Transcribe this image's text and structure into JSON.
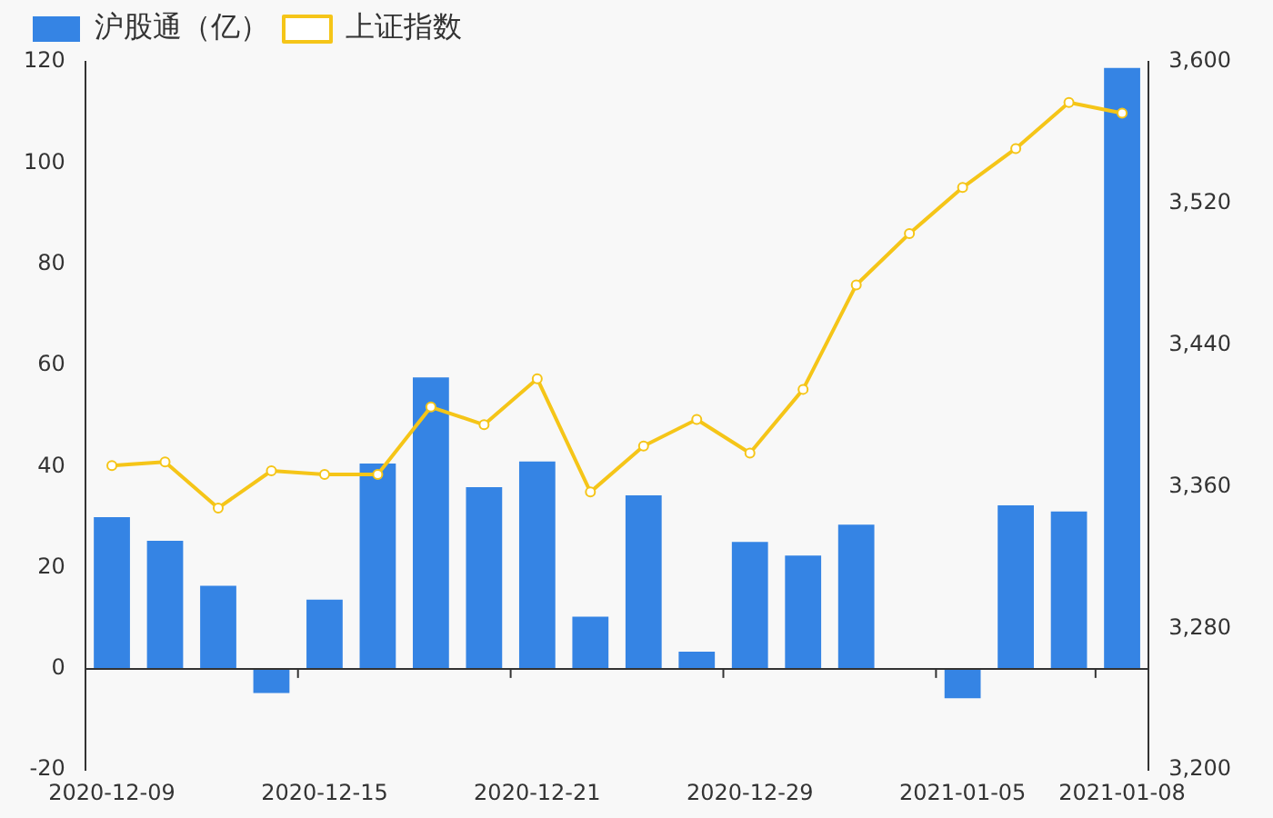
{
  "chart_data": {
    "type": "bar",
    "categories": [
      "2020-12-09",
      null,
      null,
      null,
      "2020-12-15",
      null,
      null,
      null,
      "2020-12-21",
      null,
      null,
      null,
      "2020-12-29",
      null,
      null,
      null,
      "2021-01-05",
      null,
      null,
      "2021-01-08"
    ],
    "series": [
      {
        "name": "沪股通（亿）",
        "color": "#3584e4",
        "values": [
          30,
          25.3,
          16.4,
          -4.8,
          13.7,
          40.6,
          57.6,
          35.9,
          41,
          10.3,
          34.3,
          3.4,
          25.1,
          22.4,
          28.5,
          0,
          -5.8,
          32.3,
          31.1,
          118.8
        ]
      },
      {
        "name": "上证指数",
        "type": "line",
        "axis": "y2",
        "color": "#f5c518",
        "marker": "circle",
        "values": [
          3372,
          3374,
          3348,
          3369,
          3367,
          3367,
          3405,
          3395,
          3421,
          3357,
          3383,
          3398,
          3379,
          3415,
          3474,
          3503,
          3529,
          3551,
          3577,
          3571
        ]
      }
    ],
    "ylim": [
      -20,
      120
    ],
    "yticks": [
      -20,
      0,
      20,
      40,
      60,
      80,
      100,
      120
    ],
    "y2lim": [
      3200,
      3600
    ],
    "y2ticks": [
      {
        "value": 3200,
        "label": "3,200"
      },
      {
        "value": 3280,
        "label": "3,280"
      },
      {
        "value": 3360,
        "label": "3,360"
      },
      {
        "value": 3440,
        "label": "3,440"
      },
      {
        "value": 3520,
        "label": "3,520"
      },
      {
        "value": 3600,
        "label": "3,600"
      }
    ],
    "legend": "top left"
  }
}
